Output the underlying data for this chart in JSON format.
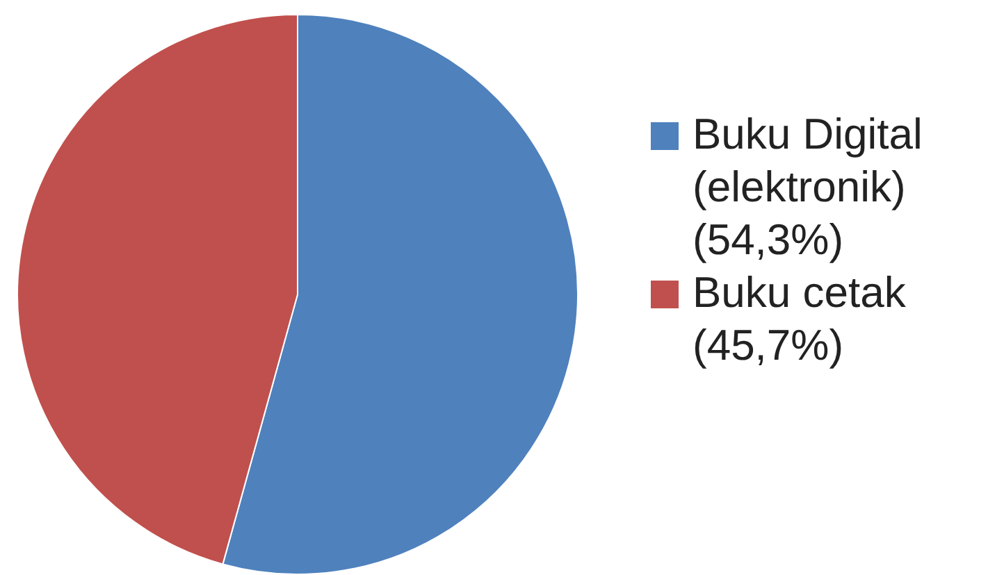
{
  "chart_data": {
    "type": "pie",
    "categories": [
      "Buku Digital (elektronik) (54,3%)",
      "Buku cetak (45,7%)"
    ],
    "values": [
      54.3,
      45.7
    ],
    "colors": [
      "#4f81bd",
      "#c0504d"
    ],
    "legend": "right"
  }
}
